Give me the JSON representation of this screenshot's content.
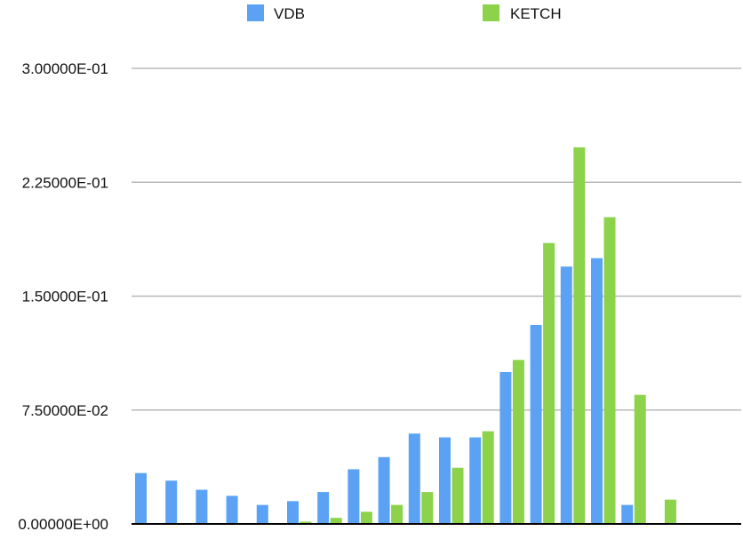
{
  "chart_data": {
    "type": "bar",
    "title": "",
    "xlabel": "",
    "ylabel": "",
    "ylim": [
      0,
      0.3
    ],
    "y_ticks": [
      0,
      0.075,
      0.15,
      0.225,
      0.3
    ],
    "y_tick_labels": [
      "0.00000E+00",
      "7.50000E-02",
      "1.50000E-01",
      "2.25000E-01",
      "3.00000E-01"
    ],
    "grid": true,
    "legend_position": "top",
    "category_count": 20,
    "series": [
      {
        "name": "VDB",
        "color": "#5BA2F5",
        "values": [
          0.0335,
          0.0285,
          0.0225,
          0.0185,
          0.0125,
          0.015,
          0.021,
          0.036,
          0.044,
          0.0595,
          0.057,
          0.057,
          0.1,
          0.131,
          0.1695,
          0.175,
          0.0125,
          0,
          0,
          0
        ]
      },
      {
        "name": "KETCH",
        "color": "#8CD34B",
        "values": [
          0,
          0,
          0,
          0,
          0,
          0.0015,
          0.004,
          0.008,
          0.0125,
          0.021,
          0.037,
          0.061,
          0.108,
          0.185,
          0.248,
          0.202,
          0.085,
          0.016,
          0,
          0
        ]
      }
    ]
  }
}
